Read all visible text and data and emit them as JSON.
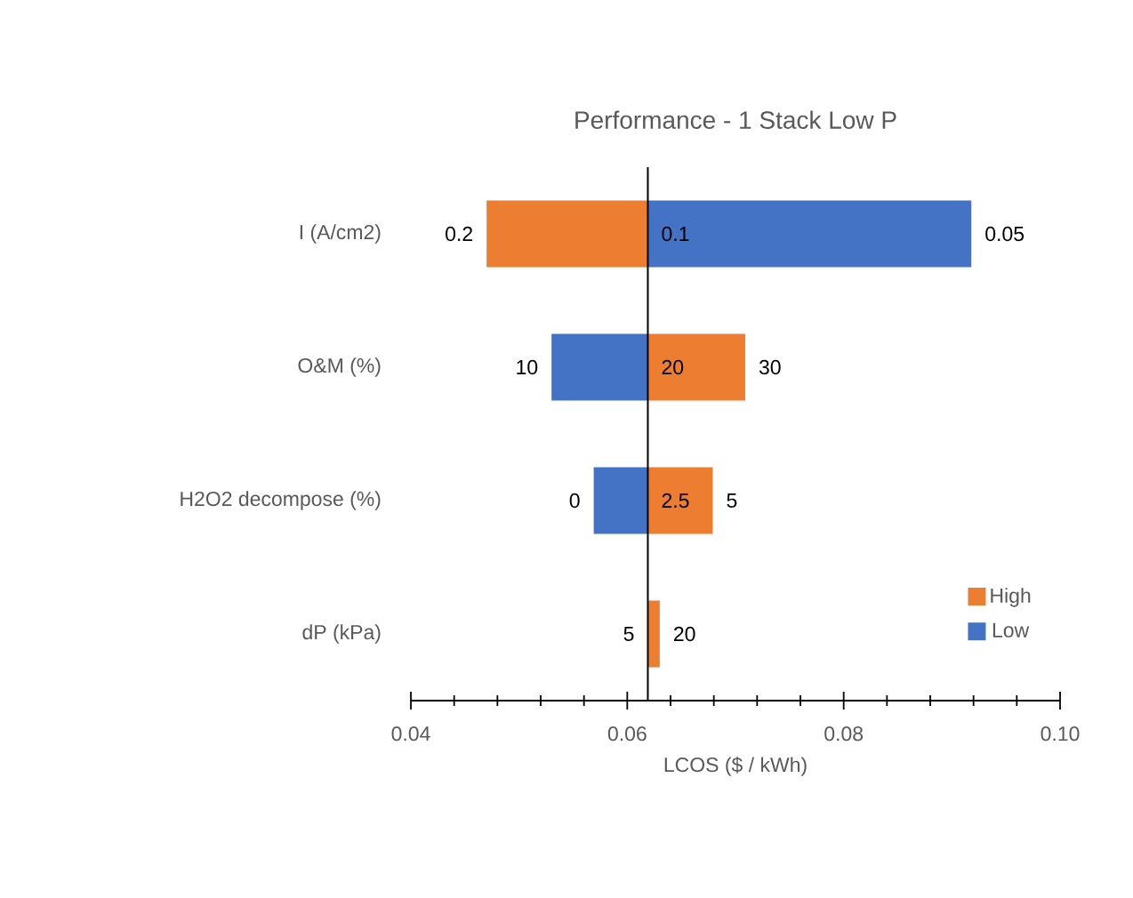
{
  "chart_data": {
    "type": "bar",
    "orientation": "horizontal",
    "title": "Performance - 1 Stack Low P",
    "xlabel": "LCOS ($ / kWh)",
    "categories": [
      "I (A/cm2)",
      "O&M (%)",
      "H2O2 decompose (%)",
      "dP (kPa)"
    ],
    "series": [
      {
        "name": "High",
        "color": "#ed7d31",
        "base": [
          0.0619,
          0.0619,
          0.0619,
          0.0619
        ],
        "values": [
          -0.0149,
          0.009,
          0.006,
          0.0011
        ]
      },
      {
        "name": "Low",
        "color": "#4472c4",
        "base": [
          0.0619,
          0.0619,
          0.0619,
          null
        ],
        "values": [
          0.0299,
          -0.0089,
          -0.005,
          null
        ]
      }
    ],
    "annotations": [
      {
        "text": "0.2",
        "x": 0.047,
        "y": "I (A/cm2)"
      },
      {
        "text": "0.1",
        "x": 0.0619,
        "y": "I (A/cm2)"
      },
      {
        "text": "0.05",
        "x": 0.0918,
        "y": "I (A/cm2)"
      },
      {
        "text": "10",
        "x": 0.053,
        "y": "O&M (%)"
      },
      {
        "text": "20",
        "x": 0.0619,
        "y": "O&M (%)"
      },
      {
        "text": "30",
        "x": 0.0709,
        "y": "O&M (%)"
      },
      {
        "text": "0",
        "x": 0.0569,
        "y": "H2O2 decompose (%)"
      },
      {
        "text": "2.5",
        "x": 0.0619,
        "y": "H2O2 decompose (%)"
      },
      {
        "text": "5",
        "x": 0.0679,
        "y": "H2O2 decompose (%)"
      },
      {
        "text": "5",
        "x": 0.0619,
        "y": "dP (kPa)"
      },
      {
        "text": "20",
        "x": 0.063,
        "y": "dP (kPa)"
      }
    ],
    "ref_lines": [
      {
        "axis": "x",
        "value": 0.0619,
        "color": "#000000"
      }
    ],
    "xlim": [
      0.04,
      0.1
    ],
    "xticks": [
      0.04,
      0.06,
      0.08,
      {
        "value": 0.1,
        "label": "0.10"
      }
    ],
    "legend": "bottom right",
    "grid": false
  }
}
